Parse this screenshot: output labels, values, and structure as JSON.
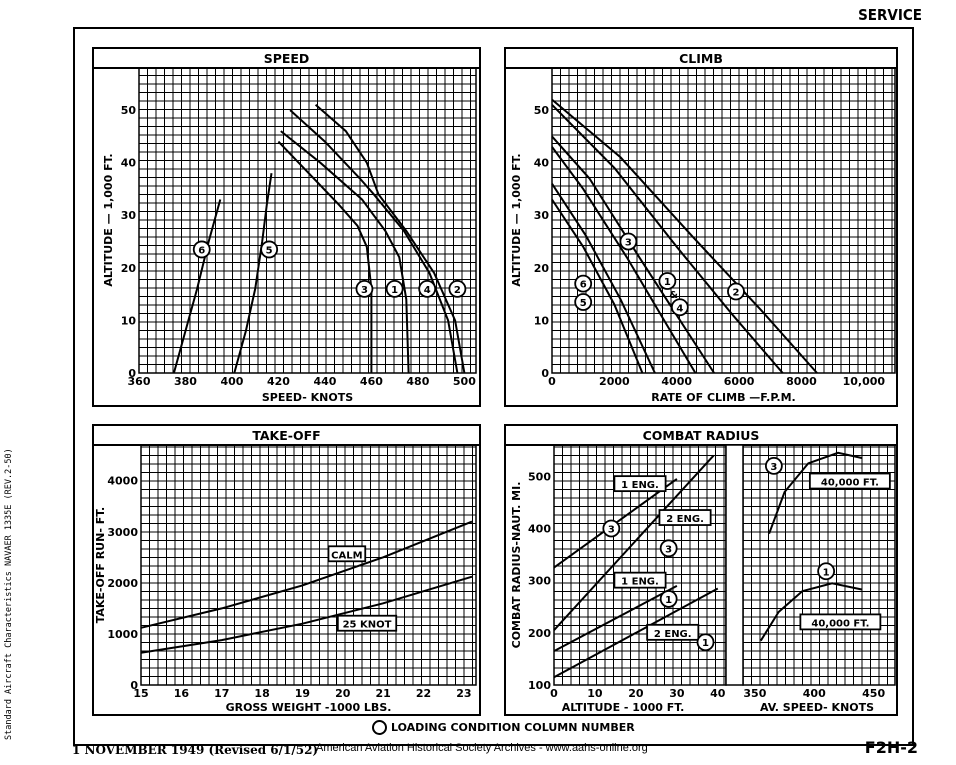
{
  "header": {
    "service_label": "SERVICE"
  },
  "footer": {
    "side_note": "Standard Aircraft Characteristics NAVAER 1335E (REV.2-50)",
    "legend_note": "LOADING CONDITION COLUMN NUMBER",
    "date": "1 NOVEMBER 1949 (Revised 6/1/52)",
    "archive": "American Aviation Historical Society Archives - www.aahs-online.org",
    "doc_number": "F2H-2"
  },
  "chart_data": [
    {
      "type": "line",
      "title": "SPEED",
      "xlabel": "SPEED- KNOTS",
      "ylabel": "ALTITUDE — 1,000 FT.",
      "xlim": [
        360,
        505
      ],
      "ylim": [
        0,
        58
      ],
      "xticks": [
        "360",
        "380",
        "400",
        "420",
        "440",
        "460",
        "480",
        "500"
      ],
      "yticks": [
        "0",
        "10",
        "20",
        "30",
        "40",
        "50"
      ],
      "grid": true,
      "series": [
        {
          "name": "6",
          "points": [
            [
              375,
              0
            ],
            [
              380,
              8
            ],
            [
              385,
              16
            ],
            [
              390,
              25
            ],
            [
              395,
              33
            ]
          ]
        },
        {
          "name": "5",
          "points": [
            [
              401,
              0
            ],
            [
              406,
              8
            ],
            [
              410,
              16
            ],
            [
              413,
              25
            ],
            [
              415,
              32
            ],
            [
              417,
              38
            ]
          ]
        },
        {
          "name": "3",
          "points": [
            [
              420,
              44
            ],
            [
              433,
              38
            ],
            [
              446,
              32
            ],
            [
              454,
              28
            ],
            [
              458,
              24
            ],
            [
              460,
              16
            ],
            [
              460,
              0
            ]
          ]
        },
        {
          "name": "1",
          "points": [
            [
              421,
              46
            ],
            [
              438,
              40
            ],
            [
              456,
              33
            ],
            [
              466,
              27
            ],
            [
              472,
              22
            ],
            [
              475,
              14
            ],
            [
              476,
              0
            ]
          ]
        },
        {
          "name": "4",
          "points": [
            [
              425,
              50
            ],
            [
              440,
              44
            ],
            [
              455,
              37
            ],
            [
              461,
              34
            ],
            [
              474,
              27
            ],
            [
              485,
              19
            ],
            [
              493,
              10
            ],
            [
              497,
              0
            ]
          ]
        },
        {
          "name": "2",
          "points": [
            [
              436,
              51
            ],
            [
              449,
              46
            ],
            [
              458,
              40
            ],
            [
              463,
              34
            ],
            [
              475,
              27
            ],
            [
              487,
              19
            ],
            [
              496,
              10
            ],
            [
              500,
              0
            ]
          ]
        }
      ],
      "labels": [
        {
          "text": "6",
          "x": 387,
          "y": 23.5
        },
        {
          "text": "5",
          "x": 416,
          "y": 23.5
        },
        {
          "text": "3",
          "x": 457,
          "y": 16
        },
        {
          "text": "1",
          "x": 470,
          "y": 16
        },
        {
          "text": "4",
          "x": 484,
          "y": 16
        },
        {
          "text": "2",
          "x": 497,
          "y": 16
        }
      ]
    },
    {
      "type": "line",
      "title": "CLIMB",
      "xlabel": "RATE OF CLIMB —F.P.M.",
      "ylabel": "ALTITUDE — 1,000 FT.",
      "xlim": [
        0,
        11000
      ],
      "ylim": [
        0,
        58
      ],
      "xticks": [
        "0",
        "2000",
        "4000",
        "6000",
        "8000",
        "10,000"
      ],
      "yticks": [
        "0",
        "10",
        "20",
        "30",
        "40",
        "50"
      ],
      "grid": true,
      "series": [
        {
          "name": "1",
          "points": [
            [
              0,
              51
            ],
            [
              2000,
              39
            ],
            [
              4000,
              24
            ],
            [
              5800,
              11
            ],
            [
              7400,
              0
            ]
          ]
        },
        {
          "name": "2",
          "points": [
            [
              0,
              52
            ],
            [
              2200,
              41
            ],
            [
              4500,
              26
            ],
            [
              6700,
              12
            ],
            [
              8500,
              0
            ]
          ]
        },
        {
          "name": "3",
          "points": [
            [
              0,
              45
            ],
            [
              1200,
              37
            ],
            [
              2800,
              22
            ],
            [
              4000,
              11
            ],
            [
              5200,
              0
            ]
          ]
        },
        {
          "name": "4",
          "points": [
            [
              0,
              43
            ],
            [
              1000,
              35
            ],
            [
              2400,
              22
            ],
            [
              3500,
              11
            ],
            [
              4600,
              0
            ]
          ]
        },
        {
          "name": "5",
          "points": [
            [
              0,
              33
            ],
            [
              1000,
              24
            ],
            [
              2000,
              13
            ],
            [
              2900,
              0
            ]
          ]
        },
        {
          "name": "6",
          "points": [
            [
              0,
              36
            ],
            [
              1100,
              26
            ],
            [
              2200,
              14
            ],
            [
              3300,
              0
            ]
          ]
        }
      ],
      "labels": [
        {
          "text": "3",
          "x": 2450,
          "y": 25
        },
        {
          "text": "6",
          "x": 1000,
          "y": 17
        },
        {
          "text": "5",
          "x": 1000,
          "y": 13.5
        },
        {
          "text": "1",
          "x": 3700,
          "y": 17.5
        },
        {
          "text": "&",
          "x": 3900,
          "y": 15
        },
        {
          "text": "4",
          "x": 4100,
          "y": 12.5
        },
        {
          "text": "2",
          "x": 5900,
          "y": 15.5
        }
      ]
    },
    {
      "type": "line",
      "title": "TAKE-OFF",
      "xlabel": "GROSS WEIGHT -1000 LBS.",
      "ylabel": "TAKE-OFF RUN- FT.",
      "xlim": [
        15,
        23.3
      ],
      "ylim": [
        0,
        4700
      ],
      "xticks": [
        "15",
        "16",
        "17",
        "18",
        "19",
        "20",
        "21",
        "22",
        "23"
      ],
      "yticks": [
        "0",
        "1000",
        "2000",
        "3000",
        "4000"
      ],
      "grid": true,
      "series": [
        {
          "name": "CALM",
          "points": [
            [
              15,
              1120
            ],
            [
              17,
              1500
            ],
            [
              19,
              1950
            ],
            [
              21,
              2500
            ],
            [
              23.2,
              3200
            ]
          ]
        },
        {
          "name": "25 KNOT",
          "points": [
            [
              15,
              630
            ],
            [
              17,
              880
            ],
            [
              19,
              1200
            ],
            [
              21,
              1600
            ],
            [
              23.2,
              2120
            ]
          ]
        }
      ],
      "labels": [
        {
          "text": "CALM",
          "x": 20.1,
          "y": 2560
        },
        {
          "text": "25 KNOT",
          "x": 20.6,
          "y": 1200
        }
      ]
    },
    {
      "type": "line",
      "title": "COMBAT RADIUS",
      "panels": [
        {
          "xlabel": "ALTITUDE - 1000 FT.",
          "ylabel": "COMBAT RADIUS-NAUT. MI.",
          "xlim": [
            0,
            42
          ],
          "ylim": [
            100,
            560
          ],
          "xticks": [
            "0",
            "10",
            "20",
            "30",
            "40"
          ],
          "yticks": [
            "100",
            "200",
            "300",
            "400",
            "500"
          ],
          "series": [
            {
              "name": "3 1 ENG.",
              "points": [
                [
                  0,
                  325
                ],
                [
                  30,
                  495
                ]
              ]
            },
            {
              "name": "3 2 ENG.",
              "points": [
                [
                  0,
                  205
                ],
                [
                  39,
                  540
                ]
              ]
            },
            {
              "name": "1 1 ENG.",
              "points": [
                [
                  0,
                  165
                ],
                [
                  30,
                  290
                ]
              ]
            },
            {
              "name": "1 2 ENG.",
              "points": [
                [
                  0,
                  115
                ],
                [
                  40,
                  285
                ]
              ]
            }
          ],
          "labels": [
            {
              "text": "1 ENG.",
              "x": 21,
              "y": 485
            },
            {
              "text": "2 ENG.",
              "x": 32,
              "y": 420
            },
            {
              "text": "1 ENG.",
              "x": 21,
              "y": 300
            },
            {
              "text": "2 ENG.",
              "x": 29,
              "y": 200
            },
            {
              "text": "3",
              "x": 14,
              "y": 400
            },
            {
              "text": "3",
              "x": 28,
              "y": 362
            },
            {
              "text": "1",
              "x": 28,
              "y": 265
            },
            {
              "text": "1",
              "x": 37,
              "y": 182
            }
          ]
        },
        {
          "xlabel": "AV. SPEED- KNOTS",
          "xlim": [
            340,
            468
          ],
          "ylim": [
            100,
            560
          ],
          "xticks": [
            "350",
            "400",
            "450"
          ],
          "series": [
            {
              "name": "3 40,000 FT.",
              "points": [
                [
                  362,
                  390
                ],
                [
                  375,
                  470
                ],
                [
                  395,
                  525
                ],
                [
                  420,
                  545
                ],
                [
                  440,
                  535
                ]
              ]
            },
            {
              "name": "1 40,000 FT.",
              "points": [
                [
                  355,
                  185
                ],
                [
                  370,
                  240
                ],
                [
                  390,
                  280
                ],
                [
                  415,
                  295
                ],
                [
                  440,
                  283
                ]
              ]
            }
          ],
          "labels": [
            {
              "text": "40,000 FT.",
              "x": 430,
              "y": 490
            },
            {
              "text": "40,000 FT.",
              "x": 422,
              "y": 220
            },
            {
              "text": "3",
              "x": 366,
              "y": 520
            },
            {
              "text": "1",
              "x": 410,
              "y": 318
            }
          ]
        }
      ]
    }
  ]
}
